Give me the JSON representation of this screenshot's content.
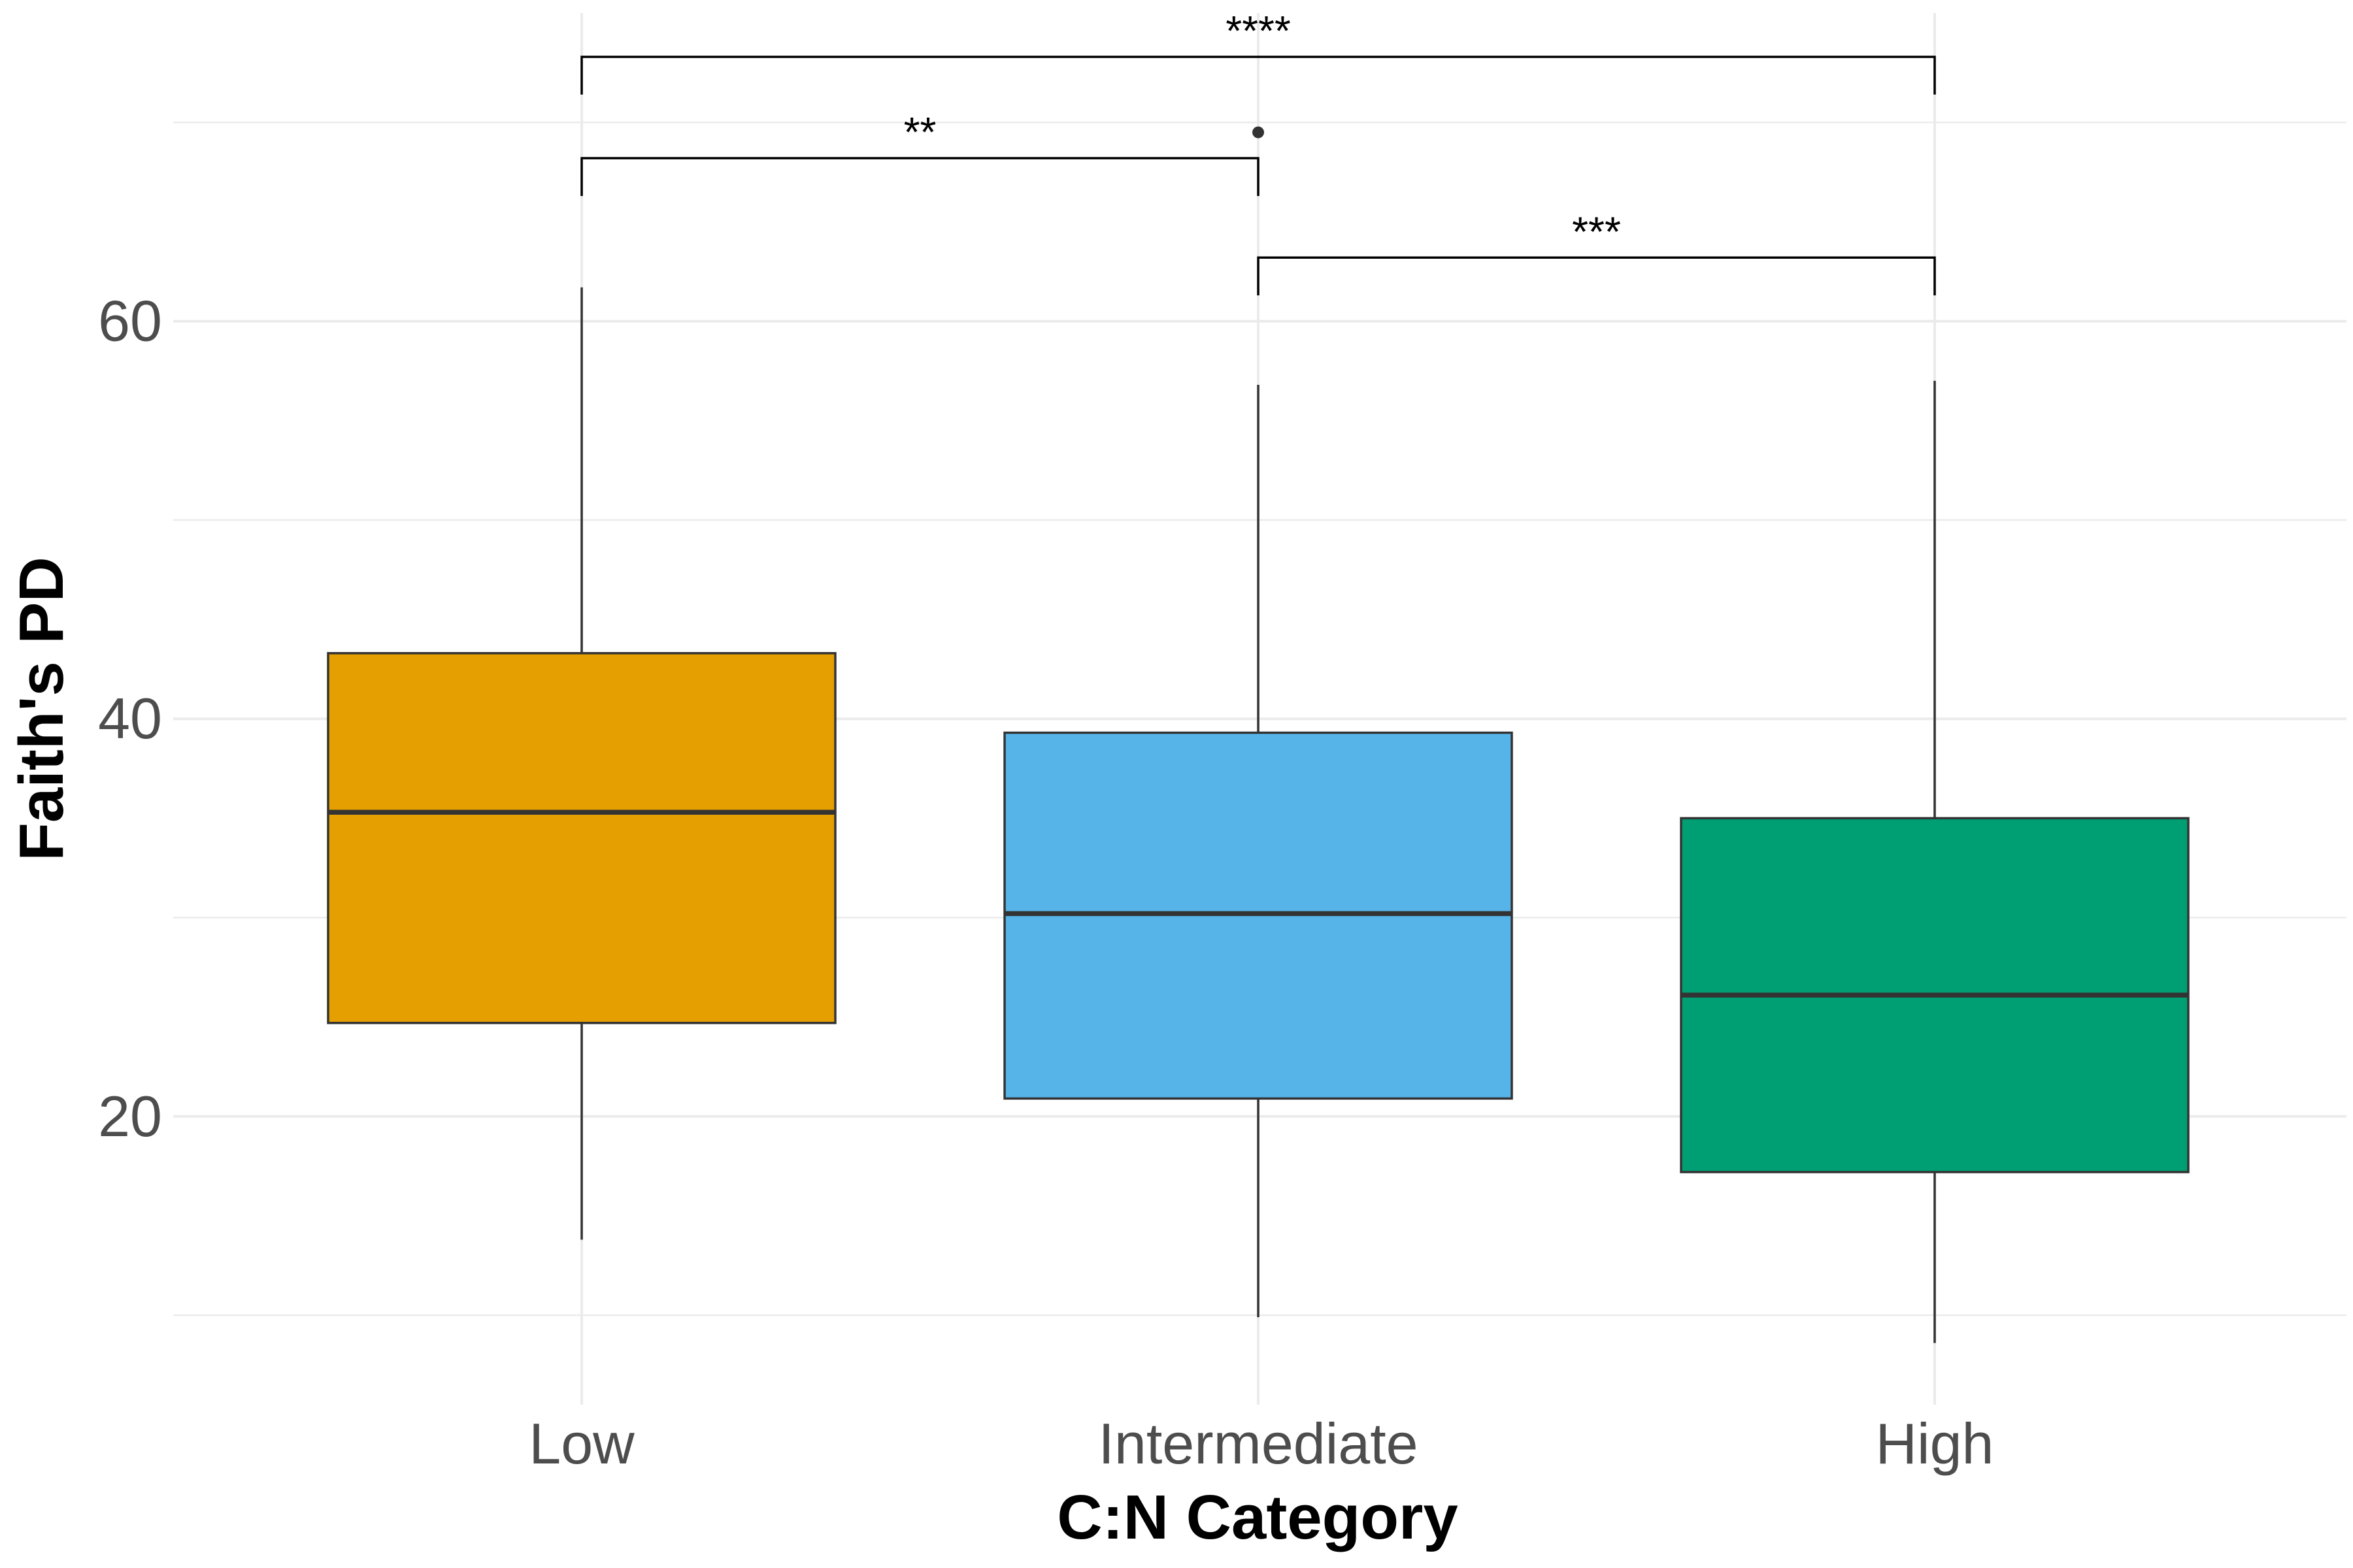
{
  "chart_data": {
    "type": "box",
    "xlabel": "C:N Category",
    "ylabel": "Faith's PD",
    "ylim": [
      5.5,
      75.5
    ],
    "y_ticks": [
      20,
      40,
      60
    ],
    "y_tick_labels": [
      "20",
      "40",
      "60"
    ],
    "grid": true,
    "categories": [
      "Low",
      "Intermediate",
      "High"
    ],
    "boxes": [
      {
        "category": "Low",
        "color": "#E69F00",
        "whisker_low": 13.8,
        "q1": 24.7,
        "median": 35.3,
        "q3": 43.3,
        "whisker_high": 61.7,
        "outliers": []
      },
      {
        "category": "Intermediate",
        "color": "#56B4E9",
        "whisker_low": 9.9,
        "q1": 20.9,
        "median": 30.2,
        "q3": 39.3,
        "whisker_high": 56.8,
        "outliers": [
          69.5
        ]
      },
      {
        "category": "High",
        "color": "#009E73",
        "whisker_low": 8.6,
        "q1": 17.2,
        "median": 26.1,
        "q3": 35.0,
        "whisker_high": 57.0,
        "outliers": []
      }
    ],
    "comparisons": [
      {
        "from": "Low",
        "to": "High",
        "label": "****",
        "y": 73.3,
        "left_tick_end": 71.4,
        "right_tick_end": 71.4
      },
      {
        "from": "Low",
        "to": "Intermediate",
        "label": "**",
        "y": 68.2,
        "left_tick_end": 66.3,
        "right_tick_end": 66.3
      },
      {
        "from": "Intermediate",
        "to": "High",
        "label": "***",
        "y": 63.2,
        "left_tick_end": 61.3,
        "right_tick_end": 61.3
      }
    ],
    "colors": {
      "box_outline": "#333333",
      "grid": "#ebebeb",
      "tick_text": "#4d4d4d"
    }
  }
}
